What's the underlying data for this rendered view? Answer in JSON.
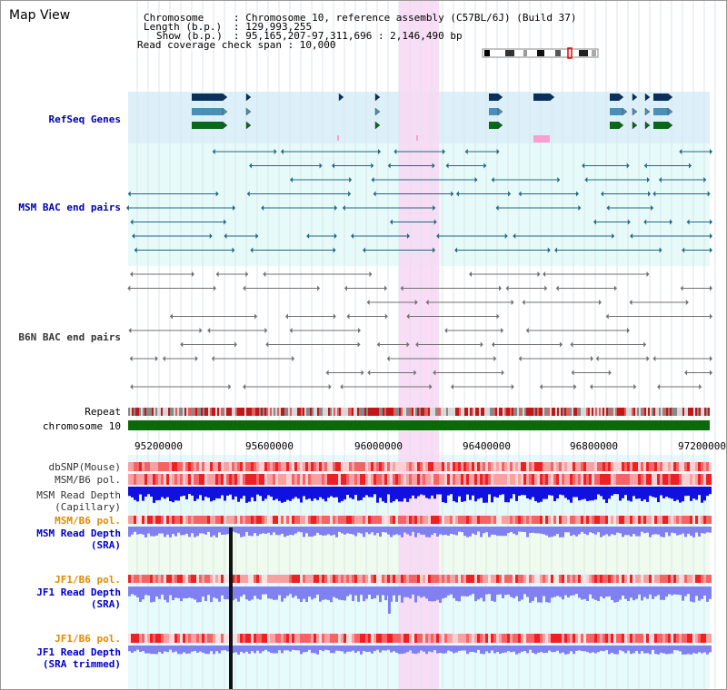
{
  "title": "Map View",
  "info": {
    "chromosome_key": "Chromosome",
    "chromosome_val": ": Chromosome 10, reference assembly (C57BL/6J) (Build 37)",
    "length_key": "Length (b.p.)",
    "length_val": ": 129,993,255",
    "show_key": "Show (b.p.)",
    "show_val": ": 95,165,207-97,311,696 : 2,146,490 bp",
    "coverage": "Read coverage check span : 10,000"
  },
  "tracks": {
    "refseq": "RefSeq Genes",
    "msm_bac": "MSM BAC end pairs",
    "b6n_bac": "B6N BAC end pairs",
    "repeat": "Repeat",
    "chromosome": "chromosome 10",
    "dbsnp": "dbSNP(Mouse)",
    "msm_pol": "MSM/B6 pol.",
    "msm_depth_cap_1": "MSM Read Depth",
    "msm_depth_cap_2": "(Capillary)",
    "msm_pol2": "MSM/B6 pol.",
    "msm_depth_sra_1": "MSM Read Depth",
    "msm_depth_sra_2": "(SRA)",
    "jf1_pol": "JF1/B6 pol.",
    "jf1_depth_sra_1": "JF1 Read Depth",
    "jf1_depth_sra_2": "(SRA)",
    "jf1_pol2": "JF1/B6 pol.",
    "jf1_depth_trim_1": "JF1 Read Depth",
    "jf1_depth_trim_2": "(SRA trimmed)"
  },
  "axis_ticks": [
    "95200000",
    "95600000",
    "96000000",
    "96400000",
    "96800000",
    "97200000"
  ],
  "colors": {
    "highlight": "#f8d8f4",
    "refseq_bg": "#dcf0fa",
    "bac_bg": "#e6fafa",
    "msm_sra_bg": "#eefbee",
    "jf1_bg": "#e6fcfc",
    "gene_navy": "#08305a",
    "gene_mid": "#4890b8",
    "gene_green": "#086a18",
    "msm_bac_line": "#206880",
    "b6n_bac_line": "#707070",
    "chromosome_bar": "#0a6a0a",
    "depth_blue": "#1010e0",
    "depth_light": "#8080f0"
  }
}
